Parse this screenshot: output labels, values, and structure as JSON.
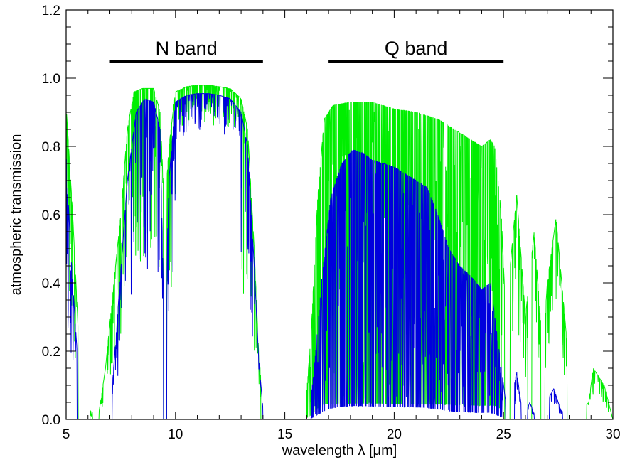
{
  "chart_data": {
    "type": "line",
    "xlabel": "wavelength λ [μm]",
    "ylabel": "atmospheric transmission",
    "xlim": [
      5,
      30
    ],
    "ylim": [
      0,
      1.2
    ],
    "x_ticks": [
      5,
      10,
      15,
      20,
      25,
      30
    ],
    "x_tick_labels": [
      "5",
      "10",
      "15",
      "20",
      "25",
      "30"
    ],
    "y_ticks": [
      0.0,
      0.2,
      0.4,
      0.6,
      0.8,
      1.0,
      1.2
    ],
    "y_tick_labels": [
      "0.0",
      "0.2",
      "0.4",
      "0.6",
      "0.8",
      "1.0",
      "1.2"
    ],
    "grid": false,
    "bands": [
      {
        "label": "N band",
        "x_start": 7.0,
        "x_end": 14.0,
        "y": 1.05
      },
      {
        "label": "Q band",
        "x_start": 17.0,
        "x_end": 25.0,
        "y": 1.05
      }
    ],
    "series": [
      {
        "color": "#00ee00",
        "envelope": [
          [
            5.0,
            0.92
          ],
          [
            5.3,
            0.6
          ],
          [
            5.6,
            0.2
          ],
          [
            5.9,
            0.04
          ],
          [
            6.2,
            0.02
          ],
          [
            6.5,
            0.02
          ],
          [
            6.8,
            0.15
          ],
          [
            7.1,
            0.35
          ],
          [
            7.5,
            0.6
          ],
          [
            7.8,
            0.85
          ],
          [
            8.1,
            0.96
          ],
          [
            8.5,
            0.97
          ],
          [
            9.0,
            0.97
          ],
          [
            9.3,
            0.9
          ],
          [
            9.5,
            0.6
          ],
          [
            9.7,
            0.8
          ],
          [
            10.0,
            0.96
          ],
          [
            10.5,
            0.975
          ],
          [
            11.0,
            0.98
          ],
          [
            11.5,
            0.98
          ],
          [
            12.0,
            0.975
          ],
          [
            12.5,
            0.97
          ],
          [
            13.0,
            0.94
          ],
          [
            13.3,
            0.85
          ],
          [
            13.6,
            0.5
          ],
          [
            13.8,
            0.2
          ],
          [
            14.0,
            0.05
          ],
          [
            14.3,
            0.0
          ],
          [
            15.9,
            0.0
          ],
          [
            16.2,
            0.25
          ],
          [
            16.5,
            0.65
          ],
          [
            16.8,
            0.88
          ],
          [
            17.2,
            0.92
          ],
          [
            18.0,
            0.93
          ],
          [
            19.0,
            0.93
          ],
          [
            20.0,
            0.91
          ],
          [
            21.0,
            0.9
          ],
          [
            22.0,
            0.88
          ],
          [
            22.5,
            0.86
          ],
          [
            23.0,
            0.84
          ],
          [
            23.5,
            0.82
          ],
          [
            24.0,
            0.8
          ],
          [
            24.4,
            0.82
          ],
          [
            24.6,
            0.8
          ],
          [
            24.9,
            0.6
          ],
          [
            25.1,
            0.3
          ],
          [
            25.6,
            0.66
          ],
          [
            26.0,
            0.3
          ],
          [
            26.4,
            0.55
          ],
          [
            26.8,
            0.2
          ],
          [
            27.0,
            0.4
          ],
          [
            27.4,
            0.59
          ],
          [
            27.8,
            0.3
          ],
          [
            28.2,
            0.0
          ],
          [
            28.9,
            0.05
          ],
          [
            29.1,
            0.15
          ],
          [
            29.6,
            0.1
          ],
          [
            30.0,
            0.0
          ]
        ],
        "deep_dips": [
          [
            5.55,
            6.1
          ],
          [
            6.2,
            6.5
          ],
          [
            9.45,
            9.6
          ],
          [
            13.9,
            16.0
          ],
          [
            25.05,
            25.3
          ],
          [
            26.1,
            26.3
          ],
          [
            26.7,
            26.9
          ],
          [
            27.9,
            28.8
          ]
        ]
      },
      {
        "color": "#0000dd",
        "envelope": [
          [
            5.0,
            0.78
          ],
          [
            5.2,
            0.5
          ],
          [
            5.5,
            0.2
          ],
          [
            5.8,
            0.02
          ],
          [
            6.2,
            0.0
          ],
          [
            7.0,
            0.0
          ],
          [
            7.4,
            0.35
          ],
          [
            7.8,
            0.7
          ],
          [
            8.2,
            0.9
          ],
          [
            8.6,
            0.94
          ],
          [
            9.0,
            0.93
          ],
          [
            9.3,
            0.85
          ],
          [
            9.5,
            0.2
          ],
          [
            9.7,
            0.7
          ],
          [
            10.0,
            0.93
          ],
          [
            10.5,
            0.95
          ],
          [
            11.0,
            0.955
          ],
          [
            11.5,
            0.955
          ],
          [
            12.0,
            0.95
          ],
          [
            12.5,
            0.94
          ],
          [
            13.0,
            0.9
          ],
          [
            13.3,
            0.8
          ],
          [
            13.6,
            0.45
          ],
          [
            13.8,
            0.18
          ],
          [
            14.0,
            0.03
          ],
          [
            14.3,
            0.0
          ],
          [
            16.0,
            0.0
          ],
          [
            16.3,
            0.12
          ],
          [
            16.7,
            0.42
          ],
          [
            17.1,
            0.65
          ],
          [
            17.6,
            0.75
          ],
          [
            18.1,
            0.79
          ],
          [
            18.6,
            0.78
          ],
          [
            19.0,
            0.76
          ],
          [
            19.5,
            0.75
          ],
          [
            20.0,
            0.74
          ],
          [
            20.5,
            0.72
          ],
          [
            21.0,
            0.7
          ],
          [
            21.5,
            0.68
          ],
          [
            22.0,
            0.6
          ],
          [
            22.5,
            0.5
          ],
          [
            23.0,
            0.45
          ],
          [
            23.5,
            0.42
          ],
          [
            24.0,
            0.38
          ],
          [
            24.4,
            0.4
          ],
          [
            24.8,
            0.2
          ],
          [
            25.2,
            0.0
          ],
          [
            25.6,
            0.14
          ],
          [
            25.9,
            0.0
          ],
          [
            26.2,
            0.05
          ],
          [
            26.5,
            0.0
          ],
          [
            27.3,
            0.09
          ],
          [
            27.6,
            0.03
          ],
          [
            28.0,
            0.0
          ],
          [
            30.0,
            0.0
          ]
        ],
        "deep_dips": [
          [
            5.5,
            7.1
          ],
          [
            9.45,
            9.6
          ],
          [
            14.0,
            16.2
          ],
          [
            25.1,
            25.5
          ],
          [
            25.8,
            26.1
          ],
          [
            26.4,
            27.1
          ],
          [
            27.7,
            30.0
          ]
        ]
      }
    ]
  }
}
